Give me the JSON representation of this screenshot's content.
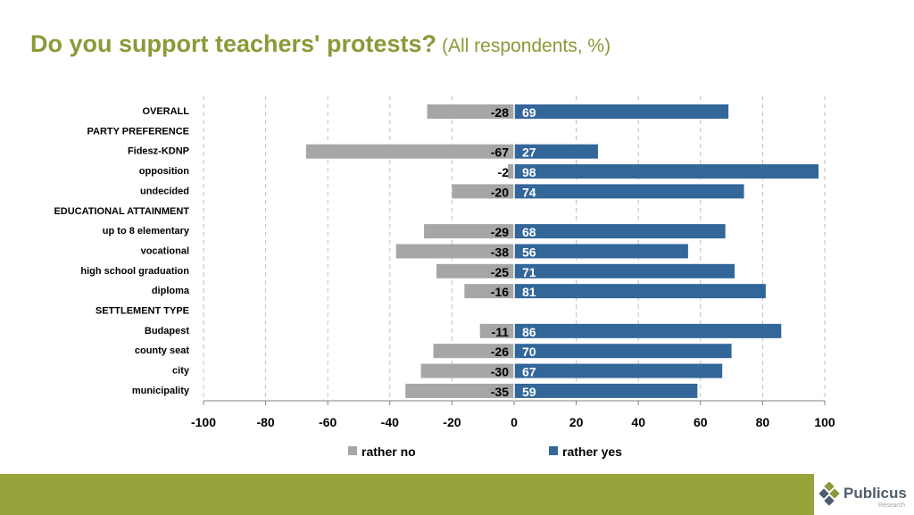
{
  "title": "Do you support teachers' protests?",
  "subtitle": "(All respondents, %)",
  "colors": {
    "title": "#8a9a38",
    "footer": "#97a33b",
    "rather_no": "#a6a6a6",
    "rather_yes": "#336699",
    "gridline": "#bfbfbf",
    "logo_text": "#4d5d6c"
  },
  "logo": {
    "text": "Publicus",
    "subtext": "Research"
  },
  "chart_data": {
    "type": "bar",
    "orientation": "horizontal",
    "stacked": "diverging",
    "categories": [
      "OVERALL",
      "PARTY PREFERENCE",
      "Fidesz-KDNP",
      "opposition",
      "undecided",
      "EDUCATIONAL ATTAINMENT",
      "up to 8 elementary",
      "vocational",
      "high school graduation",
      "diploma",
      "SETTLEMENT TYPE",
      "Budapest",
      "county seat",
      "city",
      "municipality"
    ],
    "series": [
      {
        "name": "rather no",
        "values": [
          -28,
          null,
          -67,
          -2,
          -20,
          null,
          -29,
          -38,
          -25,
          -16,
          null,
          -11,
          -26,
          -30,
          -35
        ]
      },
      {
        "name": "rather yes",
        "values": [
          69,
          null,
          27,
          98,
          74,
          null,
          68,
          56,
          71,
          81,
          null,
          86,
          70,
          67,
          59
        ]
      }
    ],
    "xlim": [
      -100,
      100
    ],
    "xticks": [
      -100,
      -80,
      -60,
      -40,
      -20,
      0,
      20,
      40,
      60,
      80,
      100
    ],
    "grid": "vertical dashed",
    "legend": "bottom"
  }
}
